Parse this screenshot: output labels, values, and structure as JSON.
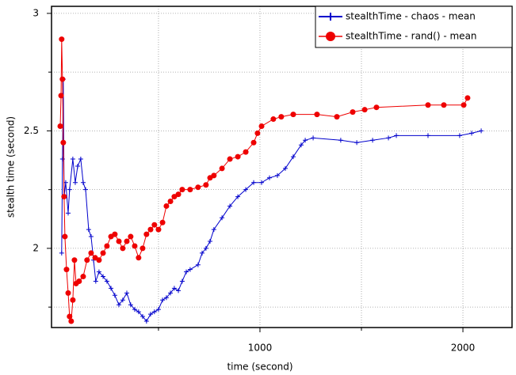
{
  "chart_data": {
    "type": "line",
    "xlabel": "time (second)",
    "ylabel": "stealth time (second)",
    "xlim": [
      -27,
      2242
    ],
    "ylim": [
      1.663,
      3.03
    ],
    "xticks": [
      1000,
      2000
    ],
    "xminor": [
      500,
      1500
    ],
    "yticks": [
      2,
      2.5,
      3
    ],
    "yminor": [
      1.75,
      2.25,
      2.75
    ],
    "grid": true,
    "legend": "upper right",
    "series": [
      {
        "name": "stealthTime - chaos - mean",
        "color": "#0000cc",
        "marker": "plus",
        "x": [
          23,
          27,
          31,
          35,
          43,
          55,
          62,
          78,
          90,
          102,
          117,
          129,
          141,
          156,
          168,
          180,
          191,
          207,
          227,
          246,
          266,
          285,
          305,
          324,
          344,
          363,
          383,
          402,
          422,
          441,
          461,
          480,
          500,
          520,
          539,
          559,
          578,
          598,
          617,
          637,
          656,
          695,
          715,
          734,
          754,
          773,
          813,
          852,
          891,
          930,
          969,
          1008,
          1047,
          1086,
          1125,
          1164,
          1203,
          1223,
          1262,
          1398,
          1477,
          1555,
          1633,
          1672,
          1828,
          1984,
          2043,
          2090
        ],
        "values": [
          1.98,
          2.38,
          2.72,
          2.22,
          2.28,
          2.15,
          2.25,
          2.38,
          2.28,
          2.35,
          2.38,
          2.28,
          2.25,
          2.08,
          2.05,
          1.95,
          1.86,
          1.9,
          1.88,
          1.86,
          1.83,
          1.8,
          1.76,
          1.78,
          1.81,
          1.76,
          1.74,
          1.73,
          1.71,
          1.69,
          1.72,
          1.73,
          1.74,
          1.78,
          1.79,
          1.81,
          1.83,
          1.82,
          1.86,
          1.9,
          1.91,
          1.93,
          1.98,
          2.0,
          2.03,
          2.08,
          2.13,
          2.18,
          2.22,
          2.25,
          2.28,
          2.28,
          2.3,
          2.31,
          2.34,
          2.39,
          2.44,
          2.46,
          2.47,
          2.46,
          2.45,
          2.46,
          2.47,
          2.48,
          2.48,
          2.48,
          2.49,
          2.5
        ]
      },
      {
        "name": "stealthTime - rand() - mean",
        "color": "#ee0000",
        "marker": "circle",
        "x": [
          16,
          20,
          23,
          27,
          31,
          35,
          39,
          47,
          55,
          62,
          70,
          78,
          86,
          94,
          109,
          129,
          148,
          168,
          188,
          207,
          227,
          246,
          266,
          285,
          305,
          324,
          344,
          363,
          383,
          402,
          422,
          441,
          461,
          480,
          500,
          520,
          539,
          559,
          578,
          598,
          617,
          656,
          695,
          734,
          754,
          773,
          813,
          852,
          891,
          930,
          969,
          988,
          1008,
          1066,
          1105,
          1164,
          1281,
          1379,
          1457,
          1516,
          1574,
          1828,
          1906,
          2004,
          2023
        ],
        "values": [
          2.52,
          2.65,
          2.89,
          2.72,
          2.45,
          2.22,
          2.05,
          1.91,
          1.81,
          1.71,
          1.69,
          1.78,
          1.95,
          1.85,
          1.86,
          1.88,
          1.95,
          1.98,
          1.96,
          1.95,
          1.98,
          2.01,
          2.05,
          2.06,
          2.03,
          2.0,
          2.03,
          2.05,
          2.01,
          1.96,
          2.0,
          2.06,
          2.08,
          2.1,
          2.08,
          2.11,
          2.18,
          2.2,
          2.22,
          2.23,
          2.25,
          2.25,
          2.26,
          2.27,
          2.3,
          2.31,
          2.34,
          2.38,
          2.39,
          2.41,
          2.45,
          2.49,
          2.52,
          2.55,
          2.56,
          2.57,
          2.57,
          2.56,
          2.58,
          2.59,
          2.6,
          2.61,
          2.61,
          2.61,
          2.64
        ]
      }
    ]
  }
}
